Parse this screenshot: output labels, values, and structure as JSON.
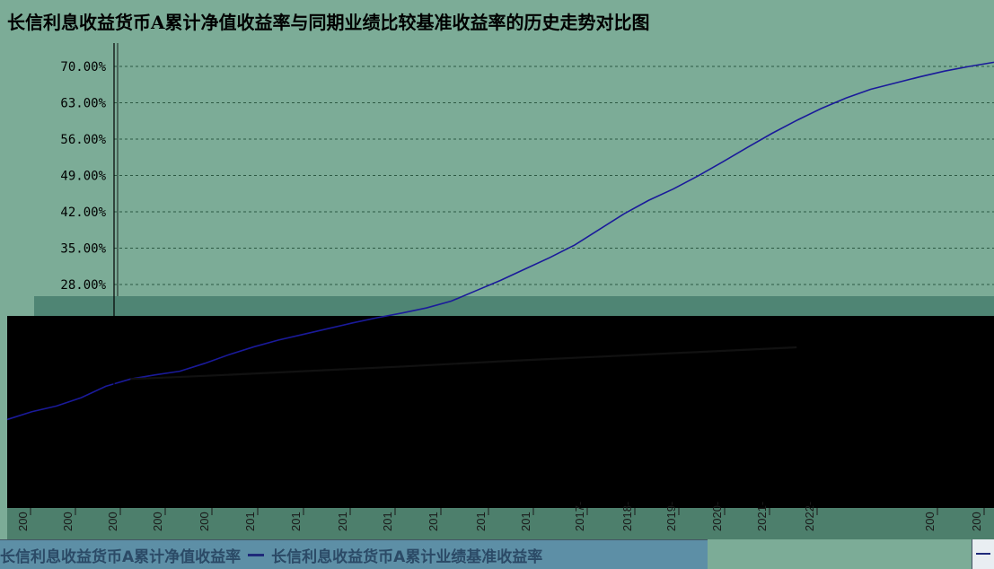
{
  "chart_data": {
    "type": "line",
    "title": "长信利息收益货币A累计净值收益率与同期业绩比较基准收益率的历史走势对比图",
    "y_ticks": [
      "70.00%",
      "63.00%",
      "56.00%",
      "49.00%",
      "42.00%",
      "35.00%",
      "28.00%"
    ],
    "x_ticks": [
      "200",
      "200",
      "200",
      "200",
      "200",
      "201",
      "201",
      "201",
      "201",
      "201",
      "201",
      "201",
      "2017-",
      "2018-",
      "2019-",
      "2020-",
      "2021-",
      "2022-",
      "200",
      "200"
    ],
    "ylim": [
      0,
      70
    ],
    "grid": true,
    "legend_placement": "bottom",
    "series": [
      {
        "name": "长信利息收益货币A累计净值收益率",
        "color": "#1a1a9a",
        "x": [
          0,
          0.5,
          1,
          1.5,
          2,
          2.5,
          3,
          3.5,
          4,
          4.5,
          5,
          5.5,
          6,
          6.5,
          7,
          7.5,
          8,
          8.5,
          9,
          9.5,
          10,
          10.5,
          11,
          11.5,
          12,
          12.5,
          13,
          13.5,
          14,
          14.5,
          15,
          15.5,
          16,
          16.5,
          17,
          17.5,
          18,
          18.5,
          19,
          19.5,
          20
        ],
        "values": [
          2,
          3.5,
          4.6,
          6.2,
          8.4,
          9.8,
          10.6,
          11.3,
          12.8,
          14.5,
          16,
          17.3,
          18.4,
          19.5,
          20.6,
          21.6,
          22.5,
          23.5,
          24.8,
          26.8,
          28.8,
          31,
          33.2,
          35.6,
          38.6,
          41.6,
          44.2,
          46.4,
          48.9,
          51.6,
          54.4,
          57.1,
          59.6,
          61.9,
          63.9,
          65.6,
          66.8,
          68,
          69.1,
          70,
          70.8
        ]
      },
      {
        "name": "长信利息收益货币A累计业绩基准收益率",
        "color": "#111111",
        "x": [
          2.5,
          4,
          6,
          8,
          10,
          12,
          14,
          16
        ],
        "values": [
          9.8,
          10.4,
          11.3,
          12.2,
          13.2,
          14.1,
          15,
          15.9
        ]
      }
    ]
  }
}
